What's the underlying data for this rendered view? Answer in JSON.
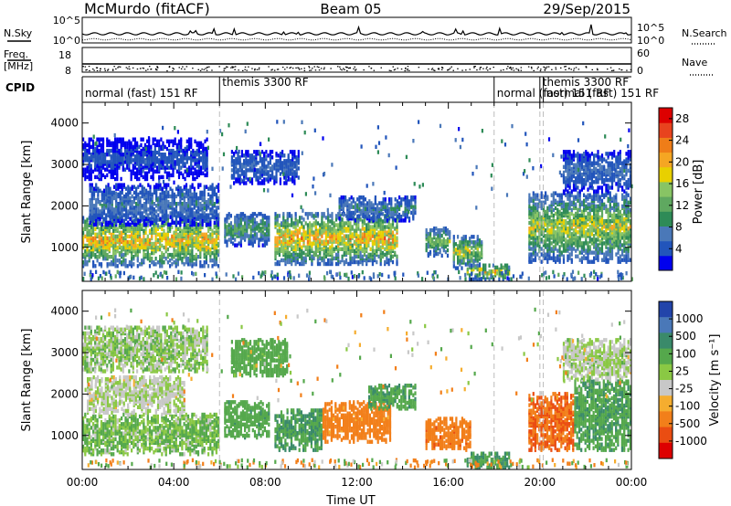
{
  "header": {
    "title": "McMurdo (fitACF)",
    "beam": "Beam 05",
    "date": "29/Sep/2015"
  },
  "status_panels": {
    "nsky_label": "N.Sky",
    "nsky_ticks": [
      "10^5",
      "10^0"
    ],
    "nsearch_label": "N.Search",
    "nsearch_ticks": [
      "10^5",
      "10^0"
    ],
    "freq_label_1": "Freq.",
    "freq_label_2": "[MHz]",
    "freq_ticks": [
      "18",
      "8"
    ],
    "nave_label": "Nave",
    "nave_ticks": [
      "60",
      "0"
    ],
    "cpid_label": "CPID",
    "cpid_segments": [
      {
        "label": "normal (fast) 151 RF",
        "start": 0.0,
        "end": 6.0
      },
      {
        "label": "themis 3300 RF",
        "start": 6.0,
        "end": 18.0
      },
      {
        "label": "normal (fast) 151 RF",
        "start": 18.0,
        "end": 20.0
      },
      {
        "label": "themis 3300 RF",
        "start": 20.0,
        "end": 20.15
      },
      {
        "label": "normal (fast) 151 RF",
        "start": 20.15,
        "end": 24.0
      }
    ]
  },
  "chart_data": [
    {
      "type": "heatmap",
      "panel": "power",
      "ylabel": "Slant Range [km]",
      "colorbar_label": "Power [dB]",
      "colorbar_ticks": [
        "28",
        "24",
        "20",
        "16",
        "12",
        "8",
        "4"
      ],
      "colorscale": [
        "#0000ee",
        "#2255bb",
        "#4a78b8",
        "#2e8b57",
        "#5fa860",
        "#88c464",
        "#e8d000",
        "#f5a623",
        "#ef7d18",
        "#e8431e",
        "#dd0000"
      ],
      "value_range": [
        0,
        30
      ],
      "xlim": [
        0,
        24
      ],
      "ylim": [
        180,
        4500
      ],
      "yticks": [
        "1000",
        "2000",
        "3000",
        "4000"
      ],
      "cpid_change_times": [
        6.0,
        18.0,
        20.0,
        20.15
      ],
      "echo_regions": [
        {
          "t0": 0.0,
          "t1": 6.0,
          "r0": 500,
          "r1": 1750,
          "peak": 24
        },
        {
          "t0": 0.3,
          "t1": 6.0,
          "r0": 1500,
          "r1": 2500,
          "peak": 9
        },
        {
          "t0": 0.0,
          "t1": 5.5,
          "r0": 2600,
          "r1": 3600,
          "peak": 5
        },
        {
          "t0": 6.2,
          "t1": 8.2,
          "r0": 1000,
          "r1": 1800,
          "peak": 14
        },
        {
          "t0": 6.5,
          "t1": 9.5,
          "r0": 2500,
          "r1": 3300,
          "peak": 7
        },
        {
          "t0": 8.4,
          "t1": 13.8,
          "r0": 550,
          "r1": 1800,
          "peak": 25
        },
        {
          "t0": 11.2,
          "t1": 14.6,
          "r0": 1600,
          "r1": 2200,
          "peak": 10
        },
        {
          "t0": 15.0,
          "t1": 16.1,
          "r0": 750,
          "r1": 1450,
          "peak": 17
        },
        {
          "t0": 16.2,
          "t1": 17.5,
          "r0": 450,
          "r1": 1250,
          "peak": 20
        },
        {
          "t0": 16.8,
          "t1": 18.7,
          "r0": 180,
          "r1": 560,
          "peak": 22
        },
        {
          "t0": 19.5,
          "t1": 24.0,
          "r0": 600,
          "r1": 2300,
          "peak": 20
        },
        {
          "t0": 21.0,
          "t1": 24.0,
          "r0": 2300,
          "r1": 3300,
          "peak": 8
        }
      ]
    },
    {
      "type": "heatmap",
      "panel": "velocity",
      "ylabel": "Slant Range [km]",
      "colorbar_label": "Velocity [m s⁻¹]",
      "colorbar_ticks": [
        "1000",
        "500",
        "100",
        "25",
        "-25",
        "-100",
        "-500",
        "-1000"
      ],
      "colorscale": [
        "#dd0000",
        "#ea4d12",
        "#f27f1a",
        "#f5ad2f",
        "#c8c8c8",
        "#8ac844",
        "#55a84c",
        "#3a8a6a",
        "#4a78b8",
        "#2244aa"
      ],
      "value_range": [
        -1000,
        1000
      ],
      "xlim": [
        0,
        24
      ],
      "ylim": [
        180,
        4500
      ],
      "yticks": [
        "1000",
        "2000",
        "3000",
        "4000"
      ],
      "xticks": [
        "00:00",
        "04:00",
        "08:00",
        "12:00",
        "16:00",
        "20:00",
        "00:00"
      ],
      "xlabel": "Time UT",
      "cpid_change_times": [
        6.0,
        18.0,
        20.0,
        20.15
      ],
      "echo_regions": [
        {
          "t0": 0.0,
          "t1": 6.0,
          "r0": 500,
          "r1": 1500,
          "v": 60
        },
        {
          "t0": 0.2,
          "t1": 4.5,
          "r0": 1500,
          "r1": 2400,
          "v": 15
        },
        {
          "t0": 0.0,
          "t1": 5.5,
          "r0": 2500,
          "r1": 3600,
          "v": 40
        },
        {
          "t0": 6.2,
          "t1": 8.2,
          "r0": 900,
          "r1": 1800,
          "v": 200
        },
        {
          "t0": 6.5,
          "t1": 9.0,
          "r0": 2400,
          "r1": 3300,
          "v": 150
        },
        {
          "t0": 8.4,
          "t1": 10.5,
          "r0": 600,
          "r1": 1600,
          "v": 300
        },
        {
          "t0": 10.5,
          "t1": 13.5,
          "r0": 800,
          "r1": 1800,
          "v": -150
        },
        {
          "t0": 12.5,
          "t1": 14.6,
          "r0": 1600,
          "r1": 2200,
          "v": 250
        },
        {
          "t0": 15.0,
          "t1": 17.0,
          "r0": 600,
          "r1": 1400,
          "v": -200
        },
        {
          "t0": 16.8,
          "t1": 18.7,
          "r0": 180,
          "r1": 560,
          "v": 300
        },
        {
          "t0": 19.5,
          "t1": 21.5,
          "r0": 600,
          "r1": 2000,
          "v": -300
        },
        {
          "t0": 21.5,
          "t1": 24.0,
          "r0": 600,
          "r1": 2300,
          "v": 250
        },
        {
          "t0": 21.0,
          "t1": 24.0,
          "r0": 2300,
          "r1": 3300,
          "v": 20
        }
      ]
    }
  ]
}
